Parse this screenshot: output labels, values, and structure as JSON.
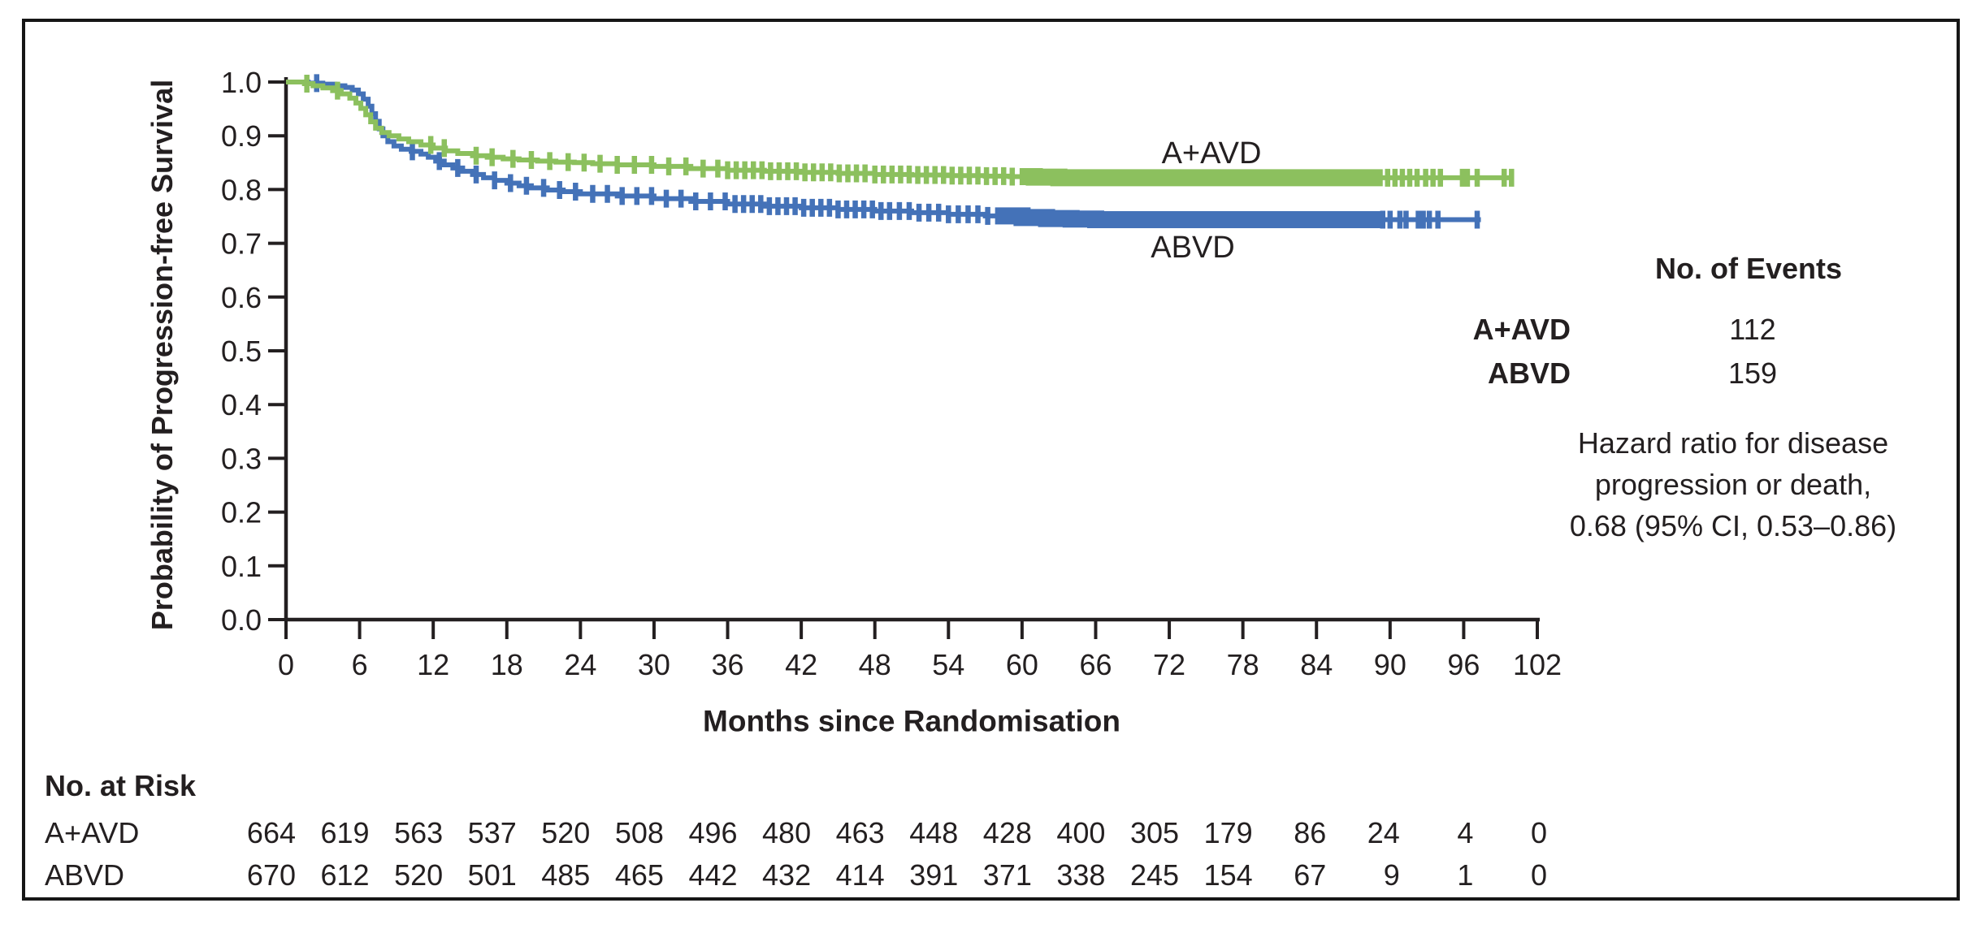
{
  "chart_data": {
    "type": "line",
    "subtype": "kaplan-meier-step",
    "title": "",
    "xlabel": "Months since Randomisation",
    "ylabel": "Probability of Progression-free Survival",
    "xlim": [
      0,
      102
    ],
    "ylim": [
      0.0,
      1.0
    ],
    "grid": false,
    "xticks": [
      0,
      6,
      12,
      18,
      24,
      30,
      36,
      42,
      48,
      54,
      60,
      66,
      72,
      78,
      84,
      90,
      96,
      102
    ],
    "yticks": [
      "0.0",
      "0.1",
      "0.2",
      "0.3",
      "0.4",
      "0.5",
      "0.6",
      "0.7",
      "0.8",
      "0.9",
      "1.0"
    ],
    "series": [
      {
        "name": "A+AVD",
        "color": "#8cc05e",
        "steps": [
          [
            0,
            1.0
          ],
          [
            1.5,
            0.997
          ],
          [
            2.2,
            0.993
          ],
          [
            3,
            0.989
          ],
          [
            3.8,
            0.984
          ],
          [
            4.5,
            0.978
          ],
          [
            5.2,
            0.97
          ],
          [
            5.7,
            0.961
          ],
          [
            6.1,
            0.951
          ],
          [
            6.5,
            0.939
          ],
          [
            6.9,
            0.926
          ],
          [
            7.3,
            0.914
          ],
          [
            7.8,
            0.906
          ],
          [
            8.4,
            0.9
          ],
          [
            9.2,
            0.894
          ],
          [
            10,
            0.889
          ],
          [
            11,
            0.883
          ],
          [
            12,
            0.877
          ],
          [
            13,
            0.872
          ],
          [
            14,
            0.867
          ],
          [
            15.2,
            0.863
          ],
          [
            16.4,
            0.86
          ],
          [
            17.7,
            0.857
          ],
          [
            19,
            0.855
          ],
          [
            20.5,
            0.853
          ],
          [
            22,
            0.851
          ],
          [
            23.5,
            0.85
          ],
          [
            25,
            0.848
          ],
          [
            27,
            0.846
          ],
          [
            30,
            0.843
          ],
          [
            33,
            0.839
          ],
          [
            36,
            0.836
          ],
          [
            39,
            0.834
          ],
          [
            42,
            0.832
          ],
          [
            45,
            0.83
          ],
          [
            48,
            0.828
          ],
          [
            51,
            0.827
          ],
          [
            54,
            0.826
          ],
          [
            57,
            0.825
          ],
          [
            59,
            0.824
          ],
          [
            61,
            0.823
          ],
          [
            63,
            0.822
          ],
          [
            100,
            0.822
          ]
        ],
        "censor_ticks": [
          1.7,
          4.2,
          11.8,
          12.9,
          15.5,
          16.8,
          18.5,
          20,
          21.5,
          23,
          24.3,
          25.6,
          27,
          28.4,
          29.8,
          31.2,
          32.6,
          34,
          35.2,
          36,
          36.7,
          37.4,
          38.1,
          38.8,
          39.5,
          40.2,
          40.9,
          41.6,
          42.3,
          43,
          43.7,
          44.4,
          45.1,
          45.8,
          46.5,
          47.2,
          48,
          48.7,
          49.4,
          50.1,
          50.8,
          51.5,
          52.2,
          52.9,
          53.6,
          54.3,
          55,
          55.7,
          56.4,
          57.1,
          57.8,
          58.5,
          59.2,
          89.8,
          90.4,
          91,
          91.6,
          92.2,
          92.9,
          93.5,
          94.1,
          95.9,
          96.3,
          97.1,
          99.3,
          99.9
        ],
        "censor_runs": [
          [
            59.8,
            89.4
          ]
        ]
      },
      {
        "name": "ABVD",
        "color": "#4472b8",
        "steps": [
          [
            0,
            1.0
          ],
          [
            1.8,
            0.998
          ],
          [
            3,
            0.996
          ],
          [
            4,
            0.993
          ],
          [
            4.8,
            0.99
          ],
          [
            5.4,
            0.985
          ],
          [
            5.9,
            0.978
          ],
          [
            6.3,
            0.968
          ],
          [
            6.7,
            0.955
          ],
          [
            7,
            0.941
          ],
          [
            7.3,
            0.927
          ],
          [
            7.6,
            0.913
          ],
          [
            7.9,
            0.9
          ],
          [
            8.3,
            0.889
          ],
          [
            8.8,
            0.881
          ],
          [
            9.4,
            0.875
          ],
          [
            10.2,
            0.871
          ],
          [
            11,
            0.866
          ],
          [
            11.6,
            0.86
          ],
          [
            12.2,
            0.853
          ],
          [
            12.9,
            0.846
          ],
          [
            13.6,
            0.84
          ],
          [
            14.4,
            0.834
          ],
          [
            15.2,
            0.828
          ],
          [
            16.1,
            0.822
          ],
          [
            17,
            0.817
          ],
          [
            18,
            0.812
          ],
          [
            19,
            0.807
          ],
          [
            20,
            0.803
          ],
          [
            21.3,
            0.799
          ],
          [
            22.6,
            0.796
          ],
          [
            24,
            0.792
          ],
          [
            27,
            0.788
          ],
          [
            30,
            0.783
          ],
          [
            33,
            0.778
          ],
          [
            36,
            0.773
          ],
          [
            39,
            0.769
          ],
          [
            42,
            0.766
          ],
          [
            45,
            0.763
          ],
          [
            48,
            0.76
          ],
          [
            51,
            0.757
          ],
          [
            54,
            0.754
          ],
          [
            57,
            0.751
          ],
          [
            60,
            0.748
          ],
          [
            62,
            0.746
          ],
          [
            64,
            0.745
          ],
          [
            66,
            0.744
          ],
          [
            97.4,
            0.744
          ]
        ],
        "censor_ticks": [
          2.5,
          10.3,
          12.5,
          14,
          15.5,
          17,
          18.3,
          19.6,
          21,
          22.3,
          23.6,
          25,
          26.2,
          27.4,
          28.6,
          29.8,
          31,
          32.2,
          33.4,
          34.6,
          35.8,
          36.6,
          37.3,
          38,
          38.7,
          39.4,
          40.1,
          40.8,
          41.5,
          42.2,
          42.9,
          43.6,
          44.3,
          45,
          45.7,
          46.4,
          47.1,
          47.8,
          48.5,
          49.2,
          50,
          50.8,
          51.6,
          52.4,
          53.2,
          54,
          54.8,
          55.6,
          56.4,
          57.2,
          89.4,
          90,
          90.8,
          91.3,
          92.3,
          92.7,
          93.2,
          93.9,
          97.1
        ],
        "censor_runs": [
          [
            57.8,
            89.2
          ]
        ]
      }
    ],
    "events_panel": {
      "title": "No. of Events",
      "rows": [
        {
          "name": "A+AVD",
          "value": "112"
        },
        {
          "name": "ABVD",
          "value": "159"
        }
      ]
    },
    "annotation": {
      "lines": [
        "Hazard ratio for disease",
        "progression or death,",
        "0.68 (95% CI, 0.53–0.86)"
      ]
    },
    "risk_table": {
      "title": "No. at Risk",
      "rows": [
        {
          "name": "A+AVD",
          "values": [
            664,
            619,
            563,
            537,
            520,
            508,
            496,
            480,
            463,
            448,
            428,
            400,
            305,
            179,
            86,
            24,
            4,
            0
          ]
        },
        {
          "name": "ABVD",
          "values": [
            670,
            612,
            520,
            501,
            485,
            465,
            442,
            432,
            414,
            391,
            371,
            338,
            245,
            154,
            67,
            9,
            1,
            0
          ]
        }
      ]
    },
    "colors": {
      "axis": "#231f20",
      "text": "#231f20",
      "aavd": "#8cc05e",
      "abvd": "#4472b8"
    }
  }
}
